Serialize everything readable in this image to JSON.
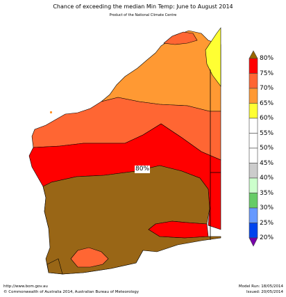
{
  "title": "Chance of exceeding the median Min Temp: June to August 2014",
  "subtitle": "Product of the National Climate Centre",
  "map_label": "80%",
  "legend": {
    "labels": [
      "80%",
      "75%",
      "70%",
      "65%",
      "60%",
      "55%",
      "50%",
      "45%",
      "40%",
      "35%",
      "30%",
      "25%",
      "20%"
    ],
    "colors": [
      "#ff0000",
      "#ff6633",
      "#ff9933",
      "#ffff33",
      "#ffffff",
      "#ffffff",
      "#ffffff",
      "#cccccc",
      "#ccffcc",
      "#66cc66",
      "#6699ff",
      "#0044ee"
    ],
    "top_arrow_color": "#996600",
    "bottom_arrow_color": "#7700aa"
  },
  "region_colors": {
    "over80": "#996616",
    "band75_80": "#ff0000",
    "band70_75": "#ff6633",
    "band65_70": "#ff9933",
    "band60_65": "#ffff33"
  },
  "footer": {
    "url": "http://www.bom.gov.au",
    "copyright": "©  Commonwealth of Australia 2014, Australian Bureau of Meteorology",
    "model_run": "Model Run: 18/05/2014",
    "issued": "Issued: 20/05/2014"
  }
}
